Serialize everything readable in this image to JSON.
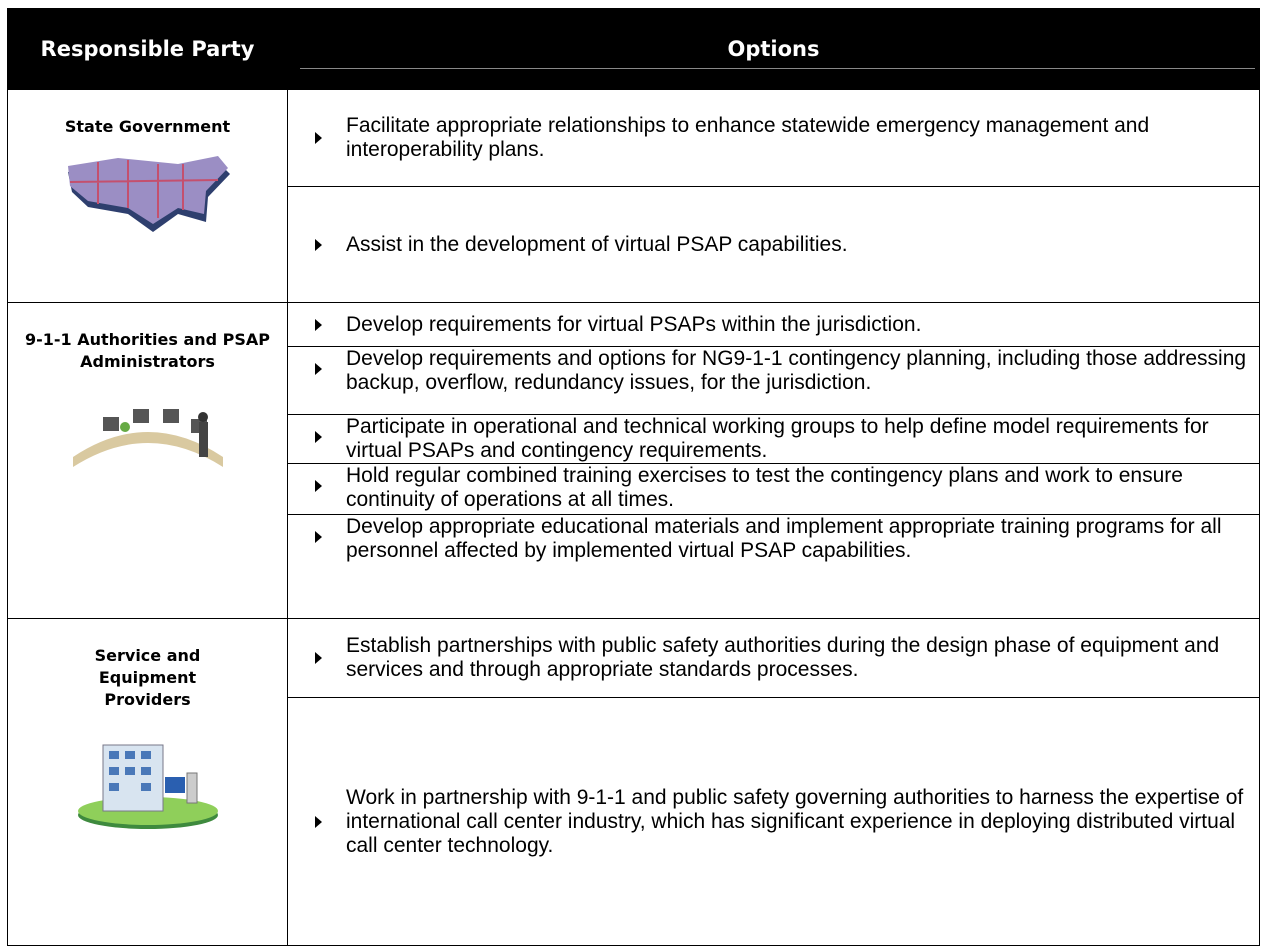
{
  "table": {
    "headers": [
      "Responsible Party",
      "Options"
    ],
    "groups": [
      {
        "party": "State Government",
        "options": [
          "Facilitate appropriate relationships to enhance statewide emergency management and interoperability plans.",
          "Assist in the development of virtual PSAP capabilities."
        ]
      },
      {
        "party": "9-1-1 Authorities and PSAP Administrators",
        "options": [
          "Develop requirements for virtual PSAPs within the jurisdiction.",
          "Develop requirements and options for NG9-1-1 contingency planning, including those addressing backup, overflow, redundancy issues, for the jurisdiction.",
          "Participate in operational and technical working groups to help define model requirements for virtual PSAPs and contingency requirements.",
          "Hold regular combined training exercises to test the contingency plans and work to ensure continuity of operations at all times.",
          "Develop appropriate educational materials and implement appropriate training programs for all personnel affected by implemented virtual PSAP capabilities."
        ]
      },
      {
        "party": "Service and Equipment Providers",
        "options": [
          "Establish partnerships with public safety authorities during the design phase of equipment and services and through appropriate standards processes.",
          "Work in partnership with 9-1-1 and public safety governing authorities to harness the expertise of international call center industry, which has significant experience in deploying distributed virtual call center technology."
        ]
      }
    ]
  }
}
